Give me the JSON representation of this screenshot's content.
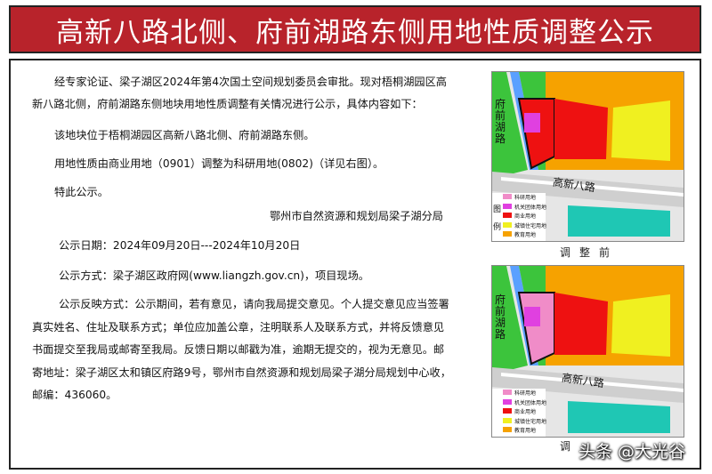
{
  "title": "高新八路北侧、府前湖路东侧用地性质调整公示",
  "body": {
    "intro": "经专家论证、梁子湖区2024年第4次国土空间规划委员会审批。现对梧桐湖园区高新八路北侧，府前湖路东侧地块用地性质调整有关情况进行公示，具体内容如下：",
    "location": "该地块位于梧桐湖园区高新八路北侧、府前湖路东侧。",
    "change": "用地性质由商业用地（0901）调整为科研用地(0802)（详见右图）。",
    "notice": "特此公示。",
    "issuer": "鄂州市自然资源和规划局梁子湖分局",
    "period": "公示日期：2024年09月20日---2024年10月20日",
    "method": "公示方式：梁子湖区政府网(www.liangzh.gov.cn)，项目现场。",
    "feedback": "公示反映方式：公示期间，若有意见，请向我局提交意见。个人提交意见应当签署真实姓名、住址及联系方式；单位应加盖公章，注明联系人及联系方式，并将反馈意见书面提交至我局或邮寄至我局。反馈日期以邮戳为准，逾期无提交的，视为无意见。邮寄地址：梁子湖区太和镇区府路9号，鄂州市自然资源和规划局梁子湖分局规划中心收，邮编：436060。"
  },
  "maps": {
    "before": {
      "caption": "调整前",
      "road_h": "高新八路",
      "road_v": "府前湖路",
      "legend_side": "图例",
      "legend": [
        "科研用地",
        "机关团体用地",
        "商业用地",
        "城镇住宅用地",
        "教育用地"
      ]
    },
    "after": {
      "caption": "调",
      "road_h": "高新八路",
      "road_v": "府前湖路",
      "legend": [
        "科研用地",
        "机关团体用地",
        "商业用地",
        "城镇住宅用地",
        "教育用地"
      ]
    }
  },
  "colors": {
    "title_bg": "#b8232b",
    "research": "#f08cc8",
    "institution": "#e040e0",
    "commercial": "#ee1111",
    "residential": "#f0f020",
    "education": "#f6a200",
    "green": "#3cc43c",
    "water": "#1fc7b4"
  },
  "watermark": "头条 @大光谷"
}
